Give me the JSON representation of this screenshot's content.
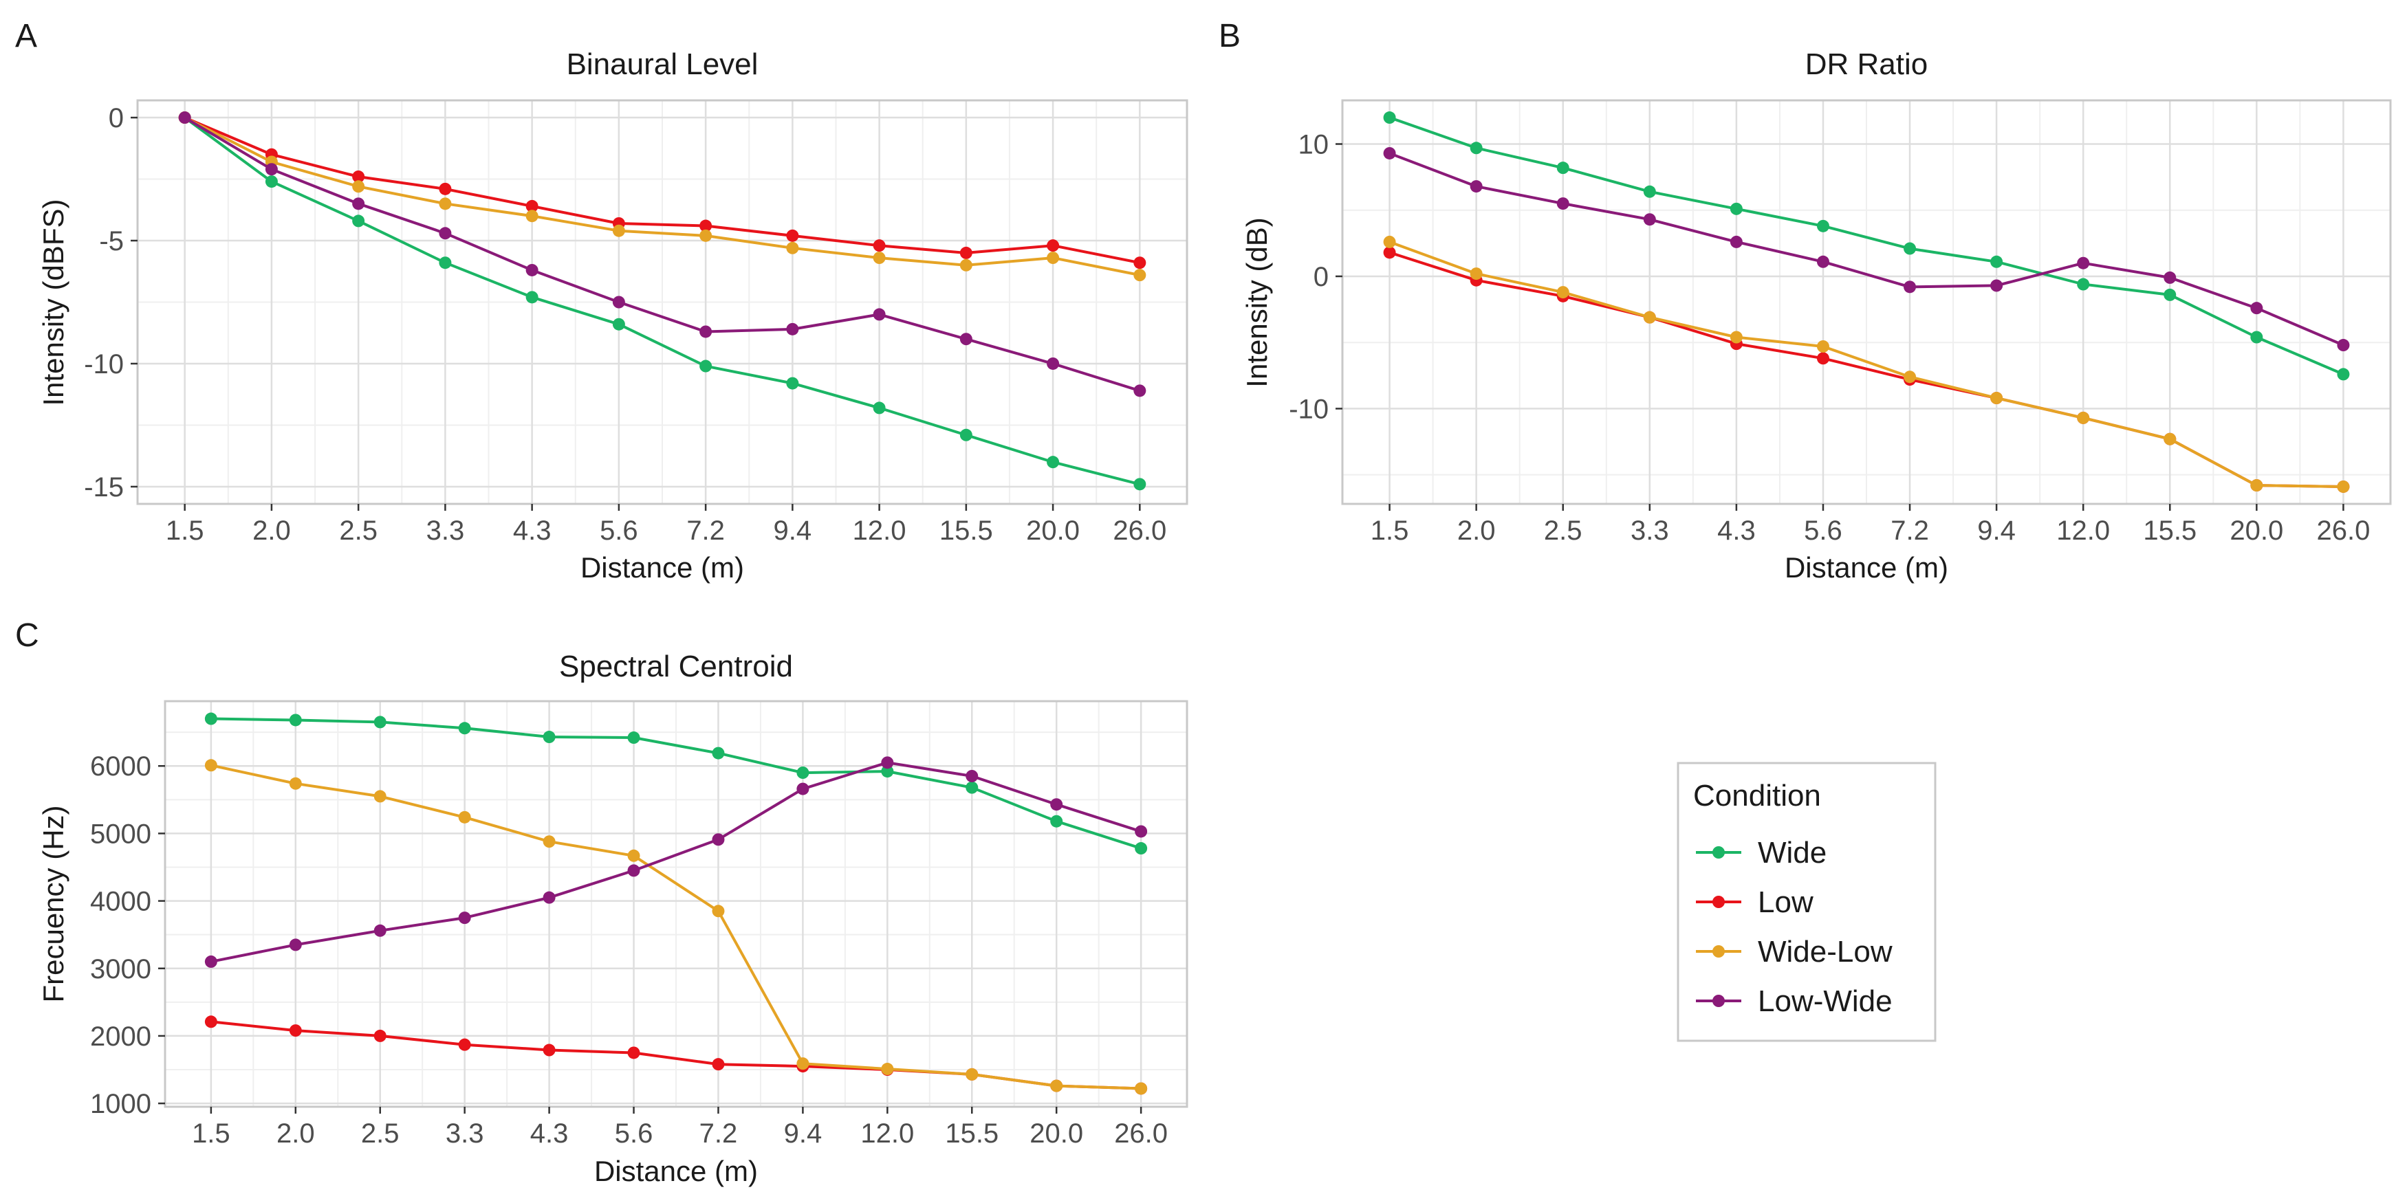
{
  "colors": {
    "Wide": "#1bb565",
    "Low": "#e8131a",
    "Wide-Low": "#e5a325",
    "Low-Wide": "#8a1a78",
    "grid_major": "#dedede",
    "grid_minor": "#efefef",
    "panel_border": "#c8c8c8",
    "text": "#1a1a1a",
    "tick_text": "#4d4d4d"
  },
  "panel_tags": {
    "a": "A",
    "b": "B",
    "c": "C"
  },
  "legend": {
    "title": "Condition",
    "items": [
      "Wide",
      "Low",
      "Wide-Low",
      "Low-Wide"
    ]
  },
  "chart_data": [
    {
      "type": "line",
      "title": "Binaural Level",
      "xlabel": "Distance (m)",
      "ylabel": "Intensity (dBFS)",
      "categories": [
        "1.5",
        "2.0",
        "2.5",
        "3.3",
        "4.3",
        "5.6",
        "7.2",
        "9.4",
        "12.0",
        "15.5",
        "20.0",
        "26.0"
      ],
      "ylim": [
        -15.7,
        0.7
      ],
      "yticks": [
        0,
        -5,
        -10,
        -15
      ],
      "ytick_labels": [
        "0",
        "-5",
        "-10",
        "-15"
      ],
      "grid": true,
      "series": [
        {
          "name": "Wide",
          "values": [
            0,
            -2.6,
            -4.2,
            -5.9,
            -7.3,
            -8.4,
            -10.1,
            -10.8,
            -11.8,
            -12.9,
            -14.0,
            -14.9
          ]
        },
        {
          "name": "Low",
          "values": [
            0,
            -1.5,
            -2.4,
            -2.9,
            -3.6,
            -4.3,
            -4.4,
            -4.8,
            -5.2,
            -5.5,
            -5.2,
            -5.9
          ]
        },
        {
          "name": "Wide-Low",
          "values": [
            0,
            -1.8,
            -2.8,
            -3.5,
            -4.0,
            -4.6,
            -4.8,
            -5.3,
            -5.7,
            -6.0,
            -5.7,
            -6.4
          ]
        },
        {
          "name": "Low-Wide",
          "values": [
            0,
            -2.1,
            -3.5,
            -4.7,
            -6.2,
            -7.5,
            -8.7,
            -8.6,
            -8.0,
            -9.0,
            -10.0,
            -11.1
          ]
        }
      ]
    },
    {
      "type": "line",
      "title": "DR Ratio",
      "xlabel": "Distance (m)",
      "ylabel": "Intensity (dB)",
      "categories": [
        "1.5",
        "2.0",
        "2.5",
        "3.3",
        "4.3",
        "5.6",
        "7.2",
        "9.4",
        "12.0",
        "15.5",
        "20.0",
        "26.0"
      ],
      "ylim": [
        -17.2,
        13.3
      ],
      "yticks": [
        10,
        0,
        -10
      ],
      "ytick_labels": [
        "10",
        "0",
        "-10"
      ],
      "grid": true,
      "series": [
        {
          "name": "Wide",
          "values": [
            12.0,
            9.7,
            8.2,
            6.4,
            5.1,
            3.8,
            2.1,
            1.1,
            -0.6,
            -1.4,
            -4.6,
            -7.4
          ]
        },
        {
          "name": "Low",
          "values": [
            1.8,
            -0.3,
            -1.5,
            -3.1,
            -5.1,
            -6.2,
            -7.8,
            -9.2,
            -10.7,
            -12.3,
            -15.8,
            -15.9
          ]
        },
        {
          "name": "Wide-Low",
          "values": [
            2.6,
            0.2,
            -1.2,
            -3.1,
            -4.6,
            -5.3,
            -7.6,
            -9.2,
            -10.7,
            -12.3,
            -15.8,
            -15.9
          ]
        },
        {
          "name": "Low-Wide",
          "values": [
            9.3,
            6.8,
            5.5,
            4.3,
            2.6,
            1.1,
            -0.8,
            -0.7,
            1.0,
            -0.1,
            -2.4,
            -5.2
          ]
        }
      ]
    },
    {
      "type": "line",
      "title": "Spectral Centroid",
      "xlabel": "Distance (m)",
      "ylabel": "Frecuency (Hz)",
      "categories": [
        "1.5",
        "2.0",
        "2.5",
        "3.3",
        "4.3",
        "5.6",
        "7.2",
        "9.4",
        "12.0",
        "15.5",
        "20.0",
        "26.0"
      ],
      "ylim": [
        950,
        6960
      ],
      "yticks": [
        1000,
        2000,
        3000,
        4000,
        5000,
        6000
      ],
      "ytick_labels": [
        "1000",
        "2000",
        "3000",
        "4000",
        "5000",
        "6000"
      ],
      "grid": true,
      "series": [
        {
          "name": "Wide",
          "values": [
            6700,
            6680,
            6650,
            6560,
            6430,
            6420,
            6190,
            5900,
            5920,
            5680,
            5180,
            4780
          ]
        },
        {
          "name": "Low",
          "values": [
            2210,
            2080,
            2000,
            1870,
            1790,
            1750,
            1580,
            1550,
            1500,
            1430,
            1260,
            1220
          ]
        },
        {
          "name": "Wide-Low",
          "values": [
            6010,
            5740,
            5550,
            5240,
            4880,
            4670,
            3850,
            1590,
            1510,
            1430,
            1260,
            1220
          ]
        },
        {
          "name": "Low-Wide",
          "values": [
            3100,
            3350,
            3560,
            3750,
            4050,
            4450,
            4910,
            5660,
            6050,
            5850,
            5430,
            5030
          ]
        }
      ]
    }
  ]
}
